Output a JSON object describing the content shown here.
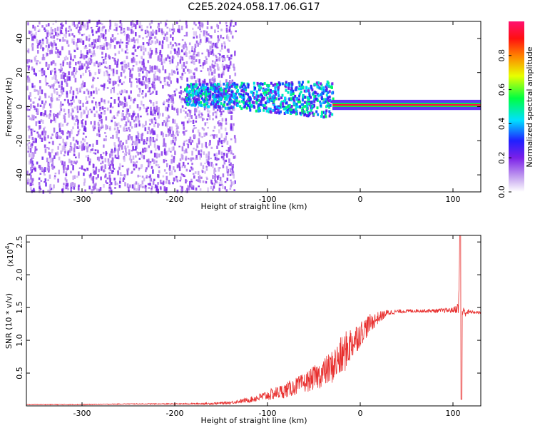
{
  "title": "C2E5.2024.058.17.06.G17",
  "colors": {
    "snr_line": "#e8302f",
    "spectrum_low": "#8a2be2",
    "spectrum_high": "#ff2a6a",
    "frame": "#000000"
  },
  "chart_data": [
    {
      "type": "heatmap",
      "title": "",
      "xlabel": "Height of straight line (km)",
      "ylabel": "Frequency (Hz)",
      "xlim": [
        -360,
        130
      ],
      "ylim": [
        -50,
        50
      ],
      "x_ticks": [
        -300,
        -200,
        -100,
        0,
        100
      ],
      "y_ticks": [
        -40,
        -20,
        0,
        20,
        40
      ],
      "colorbar": {
        "label": "Normalized spectral amplitude",
        "range": [
          0.0,
          1.0
        ],
        "ticks": [
          0.0,
          0.2,
          0.4,
          0.6,
          0.8
        ],
        "colormap": "rainbow (violet-blue-cyan-green-yellow-red-magenta)"
      },
      "regions": [
        {
          "x_range": [
            -360,
            -140
          ],
          "freq_range": [
            -50,
            50
          ],
          "level": 0.1,
          "description": "noise"
        },
        {
          "x_range": [
            -190,
            -30
          ],
          "freq_center": 4,
          "freq_width": 12,
          "level": 0.5,
          "description": "diffuse band"
        },
        {
          "x_range": [
            -30,
            130
          ],
          "freq_center": 1,
          "freq_width": 2,
          "level": 0.95,
          "description": "narrow carrier"
        }
      ]
    },
    {
      "type": "line",
      "title": "",
      "xlabel": "Height of straight line (km)",
      "ylabel": "SNR (10 * v/v)",
      "y_multiplier_label": "(x10",
      "y_multiplier_exp": "4",
      "y_multiplier_close": ")",
      "xlim": [
        -360,
        130
      ],
      "ylim": [
        0,
        26000
      ],
      "x_ticks": [
        -300,
        -200,
        -100,
        0,
        100
      ],
      "y_ticks": [
        5000,
        10000,
        15000,
        20000,
        25000
      ],
      "y_tick_labels": [
        "0.5",
        "1.0",
        "1.5",
        "2.0",
        "2.5"
      ],
      "series": [
        {
          "x": [
            -360,
            -300,
            -250,
            -200,
            -160,
            -140,
            -120,
            -100,
            -80,
            -60,
            -40,
            -30,
            -20,
            -10,
            0,
            10,
            20,
            30,
            40,
            60,
            80,
            100,
            106,
            108,
            110,
            120,
            130
          ],
          "values": [
            200,
            200,
            300,
            300,
            350,
            500,
            900,
            1600,
            2400,
            3500,
            5000,
            6000,
            7500,
            9500,
            11000,
            12500,
            13500,
            14200,
            14400,
            14500,
            14500,
            14600,
            15000,
            26000,
            14300,
            14300,
            14200
          ],
          "noise": [
            50,
            60,
            60,
            80,
            150,
            200,
            400,
            800,
            1200,
            1500,
            2200,
            2600,
            3200,
            2800,
            2000,
            1500,
            900,
            500,
            300,
            250,
            300,
            400,
            900,
            12000,
            900,
            250,
            200
          ]
        }
      ]
    }
  ]
}
